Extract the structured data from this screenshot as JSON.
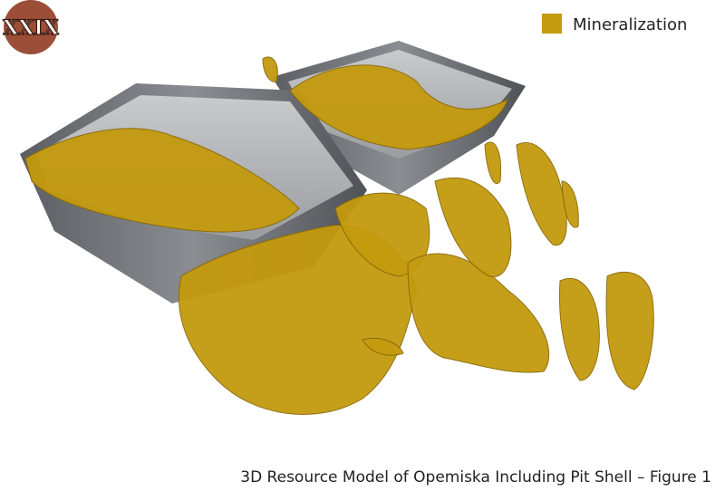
{
  "logo": {
    "text": "XXIX"
  },
  "legend": {
    "label": "Mineralization",
    "color": "#c49a0e"
  },
  "caption": "3D Resource Model of Opemiska Including Pit Shell – Figure 1"
}
